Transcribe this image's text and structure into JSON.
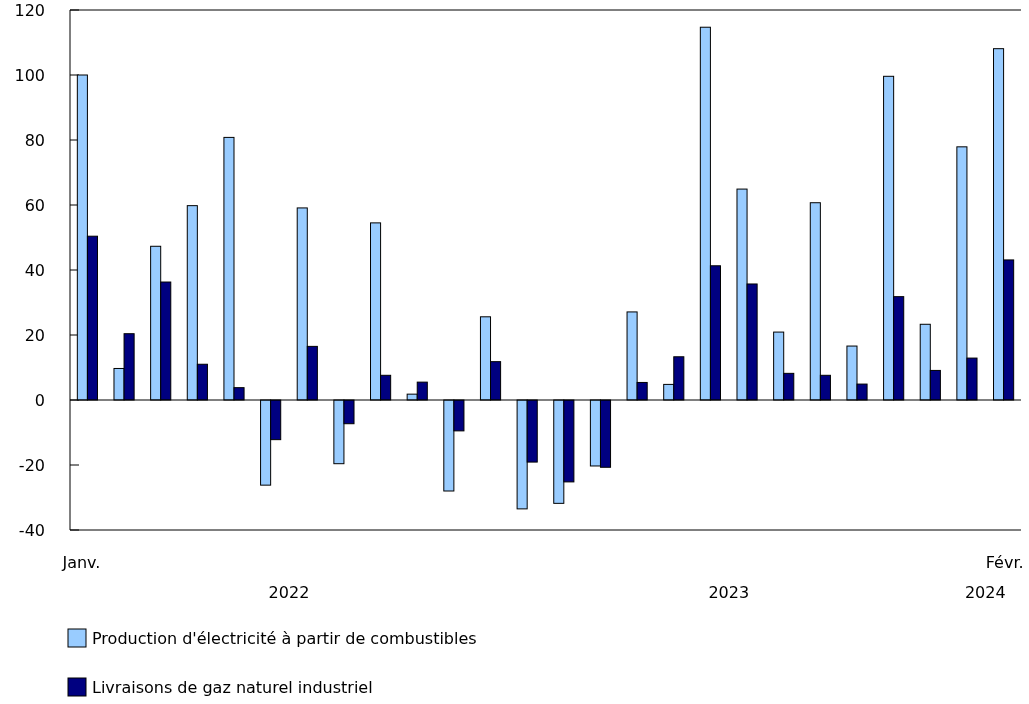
{
  "chart_data": {
    "type": "bar",
    "categories": [
      "Janv.",
      null,
      null,
      null,
      null,
      null,
      null,
      null,
      null,
      null,
      null,
      null,
      null,
      null,
      null,
      null,
      null,
      null,
      null,
      null,
      null,
      null,
      null,
      null,
      null,
      "Févr."
    ],
    "series": [
      {
        "name": "Production d'électricité à partir de combustibles",
        "color": "#99ccff",
        "values": [
          100,
          9.7,
          47.3,
          59.8,
          80.8,
          -26.2,
          59.1,
          -19.6,
          54.5,
          1.8,
          -28,
          25.6,
          -33.5,
          -31.8,
          -20.3,
          27.1,
          4.8,
          114.7,
          64.9,
          20.9,
          60.7,
          16.6,
          99.6,
          23.3,
          77.9,
          108.1
        ]
      },
      {
        "name": "Livraisons de gaz naturel industriel",
        "color": "#000080",
        "values": [
          50.4,
          20.4,
          36.3,
          11,
          3.8,
          -12.2,
          16.5,
          -7.3,
          7.6,
          5.5,
          -9.5,
          11.8,
          -19.1,
          -25.2,
          -20.7,
          5.4,
          13.3,
          41.3,
          35.7,
          8.2,
          7.6,
          4.9,
          31.8,
          9.1,
          12.9,
          43.1
        ]
      }
    ],
    "annotations": [
      "2022",
      "2023",
      "2024"
    ],
    "ylim": [
      -40,
      120
    ],
    "yticks": [
      -40,
      -20,
      0,
      20,
      40,
      60,
      80,
      100,
      120
    ],
    "legend": "bottom"
  }
}
